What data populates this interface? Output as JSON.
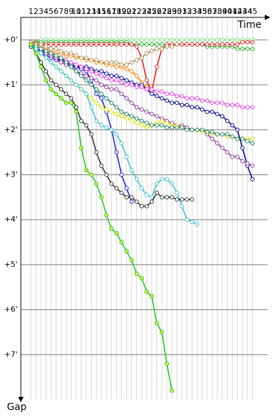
{
  "chart_data": {
    "type": "line",
    "xlabel": "Time",
    "ylabel": "Gap",
    "x": [
      1,
      2,
      3,
      4,
      5,
      6,
      7,
      8,
      9,
      10,
      11,
      12,
      13,
      14,
      15,
      16,
      17,
      18,
      19,
      20,
      21,
      22,
      23,
      24,
      25,
      26,
      27,
      28,
      29,
      30,
      31,
      32,
      33,
      34,
      35,
      36,
      37,
      38,
      39,
      40,
      41,
      42,
      43,
      44,
      45
    ],
    "xlim": [
      -1,
      48
    ],
    "ylim": [
      -0.5,
      8
    ],
    "yticks": [
      {
        "value": 0,
        "label": "+0'"
      },
      {
        "value": 1,
        "label": "+1'"
      },
      {
        "value": 2,
        "label": "+2'"
      },
      {
        "value": 3,
        "label": "+3'"
      },
      {
        "value": 4,
        "label": "+4'"
      },
      {
        "value": 5,
        "label": "+5'"
      },
      {
        "value": 6,
        "label": "+6'"
      },
      {
        "value": 7,
        "label": "+7'"
      }
    ],
    "y_inverted": true,
    "grid": true,
    "series": [
      {
        "color": "#7ee07e",
        "values": [
          0.05,
          0.05,
          0,
          0,
          0,
          0,
          0,
          0,
          0,
          0,
          0,
          0,
          0,
          0,
          0,
          0,
          0,
          0,
          0,
          0,
          0,
          0,
          0,
          0,
          0,
          0,
          0,
          0,
          0,
          0,
          0,
          0,
          0,
          0,
          0,
          0,
          0,
          0,
          0,
          0,
          0,
          0,
          0,
          0,
          0
        ]
      },
      {
        "color": "#22b022",
        "values": [
          0.05,
          0.05,
          0.05,
          0.05,
          0.05,
          0.05,
          0.05,
          0.05,
          0.05,
          0.05,
          0.05,
          0.05,
          0.05,
          0.05,
          0.05,
          0.05,
          0.05,
          0.05,
          0.05,
          0.05,
          0.1,
          0.1,
          0.1,
          0.1,
          0.1,
          0.1,
          0.1,
          0.1,
          0.1,
          0.1,
          0.1,
          0.1,
          0.1,
          0.1,
          0.1,
          0.15,
          0.15,
          0.15,
          0.15,
          0.15,
          0.15,
          0.2,
          0.2,
          0.2,
          0.2
        ]
      },
      {
        "color": "#e02020",
        "values": [
          0.05,
          0.08,
          0.1,
          0.1,
          0.1,
          0.1,
          0.1,
          0.1,
          0.1,
          0.1,
          0.1,
          0.1,
          0.1,
          0.1,
          0.1,
          0.1,
          0.1,
          0.1,
          0.1,
          0.1,
          0.1,
          0.15,
          0.4,
          0.9,
          1.15,
          0.6,
          0.2,
          0.1,
          0.1,
          0.1,
          0.1,
          0.1,
          0.1,
          0.1,
          0.1,
          0.1,
          0.1,
          0.1,
          0.1,
          0.1,
          0.1,
          0.1,
          0.05,
          0.05,
          0.05
        ]
      },
      {
        "color": "#ff8000",
        "values": [
          0.05,
          0.1,
          0.15,
          0.2,
          0.25,
          0.3,
          0.3,
          0.35,
          0.35,
          0.4,
          0.4,
          0.45,
          0.45,
          0.5,
          0.5,
          0.55,
          0.55,
          0.6,
          0.6,
          0.65,
          0.7,
          0.8,
          0.95,
          1.05,
          null,
          null,
          null,
          null,
          null,
          null,
          null,
          null,
          null,
          null,
          null,
          null,
          null,
          null,
          null,
          null,
          null,
          null,
          null,
          null,
          null
        ]
      },
      {
        "color": "#b09050",
        "values": [
          0.05,
          0.1,
          0.1,
          0.15,
          0.2,
          0.2,
          0.25,
          0.3,
          0.3,
          0.35,
          0.4,
          0.4,
          0.45,
          0.45,
          0.5,
          0.5,
          0.5,
          0.5,
          0.55,
          0.55,
          0.5,
          0.45,
          0.4,
          0.3,
          0.25,
          0.2,
          0.2,
          0.15,
          0.15,
          0.1,
          null,
          null,
          null,
          null,
          null,
          null,
          null,
          null,
          null,
          null,
          null,
          null,
          null,
          null,
          null
        ]
      },
      {
        "color": "#2020e0",
        "values": [
          0.1,
          0.2,
          0.3,
          0.35,
          0.4,
          0.45,
          0.5,
          0.55,
          0.6,
          0.6,
          0.65,
          0.7,
          0.9,
          1.2,
          1.3,
          1.6,
          2.0,
          2.5,
          3.0,
          3.3,
          3.6,
          null,
          null,
          null,
          null,
          null,
          null,
          null,
          null,
          null,
          null,
          null,
          null,
          null,
          null,
          null,
          null,
          null,
          null,
          null,
          null,
          null,
          null,
          null,
          null
        ]
      },
      {
        "color": "#000090",
        "values": [
          0.15,
          0.2,
          0.25,
          0.3,
          0.35,
          0.4,
          0.45,
          0.5,
          0.55,
          0.6,
          0.6,
          0.6,
          0.65,
          0.7,
          0.7,
          0.75,
          0.8,
          0.8,
          0.85,
          0.9,
          0.95,
          1.0,
          1.0,
          1.1,
          1.2,
          1.25,
          1.3,
          1.35,
          1.4,
          1.4,
          1.45,
          1.45,
          1.5,
          1.5,
          1.55,
          1.6,
          1.6,
          1.65,
          1.7,
          1.8,
          1.9,
          2.0,
          2.4,
          2.8,
          3.1
        ]
      },
      {
        "color": "#9040a0",
        "values": [
          0.1,
          0.15,
          0.2,
          0.3,
          0.35,
          0.4,
          0.5,
          0.55,
          0.6,
          0.7,
          0.75,
          0.8,
          0.85,
          0.9,
          1.0,
          1.05,
          1.1,
          1.1,
          1.2,
          1.3,
          1.4,
          1.5,
          1.55,
          1.6,
          1.65,
          1.7,
          1.75,
          1.8,
          1.85,
          1.9,
          1.9,
          1.95,
          2.0,
          2.0,
          2.0,
          2.1,
          2.2,
          2.3,
          2.4,
          2.5,
          2.6,
          2.6,
          2.7,
          2.75,
          2.8
        ]
      },
      {
        "color": "#e040e0",
        "values": [
          0.1,
          0.15,
          0.2,
          0.25,
          0.3,
          0.35,
          0.4,
          0.45,
          0.5,
          0.55,
          0.6,
          0.65,
          0.7,
          0.75,
          0.8,
          0.85,
          0.9,
          0.9,
          0.95,
          1.0,
          1.0,
          1.05,
          1.05,
          1.1,
          1.1,
          1.15,
          1.15,
          1.2,
          1.2,
          1.25,
          1.25,
          1.3,
          1.3,
          1.3,
          1.35,
          1.35,
          1.4,
          1.4,
          1.4,
          1.45,
          1.45,
          1.45,
          1.5,
          1.5,
          1.5
        ]
      },
      {
        "color": "#e0e000",
        "values": [
          0.1,
          0.2,
          0.3,
          0.4,
          0.5,
          0.6,
          0.7,
          0.8,
          0.9,
          1.0,
          1.1,
          1.2,
          1.3,
          1.4,
          1.5,
          1.55,
          1.6,
          1.65,
          1.7,
          1.75,
          1.8,
          1.85,
          1.9,
          1.95,
          1.9,
          1.85,
          1.8,
          1.85,
          1.9,
          1.9,
          1.95,
          2.0,
          2.0,
          2.0,
          2.05,
          2.05,
          2.1,
          2.1,
          2.1,
          2.15,
          2.15,
          2.2,
          2.2,
          2.2,
          2.2
        ]
      },
      {
        "color": "#208060",
        "values": [
          0.1,
          0.15,
          0.2,
          0.25,
          0.3,
          0.35,
          0.4,
          0.5,
          0.6,
          0.7,
          0.8,
          0.9,
          1.0,
          1.1,
          1.2,
          1.3,
          1.4,
          1.5,
          1.6,
          1.65,
          1.7,
          1.75,
          1.8,
          1.85,
          1.9,
          1.9,
          1.9,
          1.95,
          1.95,
          1.95,
          1.95,
          2.0,
          2.0,
          2.0,
          2.0,
          2.05,
          2.05,
          2.1,
          2.1,
          2.1,
          2.15,
          2.2,
          2.2,
          2.25,
          2.3
        ]
      },
      {
        "color": "#40c0d0",
        "values": [
          0.1,
          0.2,
          0.3,
          0.4,
          0.5,
          0.6,
          0.7,
          0.8,
          0.9,
          1.0,
          1.1,
          1.2,
          1.5,
          1.8,
          1.9,
          1.95,
          2.0,
          2.1,
          2.3,
          2.6,
          2.9,
          3.1,
          3.3,
          3.45,
          3.5,
          3.2,
          3.1,
          3.1,
          3.2,
          3.4,
          3.7,
          4.0,
          4.05,
          4.1,
          null,
          null,
          null,
          null,
          null,
          null,
          null,
          null,
          null,
          null,
          null
        ]
      },
      {
        "color": "#303030",
        "values": [
          0.1,
          0.3,
          0.5,
          0.7,
          0.9,
          1.0,
          1.1,
          1.2,
          1.3,
          1.5,
          1.8,
          1.9,
          2.1,
          2.5,
          2.8,
          3.0,
          3.2,
          3.3,
          3.4,
          3.5,
          3.5,
          3.6,
          3.7,
          3.7,
          3.6,
          3.4,
          3.5,
          3.5,
          3.5,
          3.55,
          3.55,
          3.55,
          3.55,
          null,
          null,
          null,
          null,
          null,
          null,
          null,
          null,
          null,
          null,
          null,
          null
        ]
      },
      {
        "color": "#20c820",
        "marker_fill": "#e8f040",
        "values": [
          0.1,
          0.3,
          0.6,
          0.9,
          1.1,
          1.2,
          1.3,
          1.4,
          1.4,
          1.6,
          2.4,
          2.9,
          3.0,
          3.2,
          3.5,
          3.9,
          4.2,
          4.3,
          4.5,
          4.7,
          4.9,
          5.2,
          5.3,
          5.6,
          5.7,
          6.3,
          6.5,
          7.2,
          7.8,
          null,
          null,
          null,
          null,
          null,
          null,
          null,
          null,
          null,
          null,
          null,
          null,
          null,
          null,
          null,
          null
        ]
      }
    ]
  }
}
